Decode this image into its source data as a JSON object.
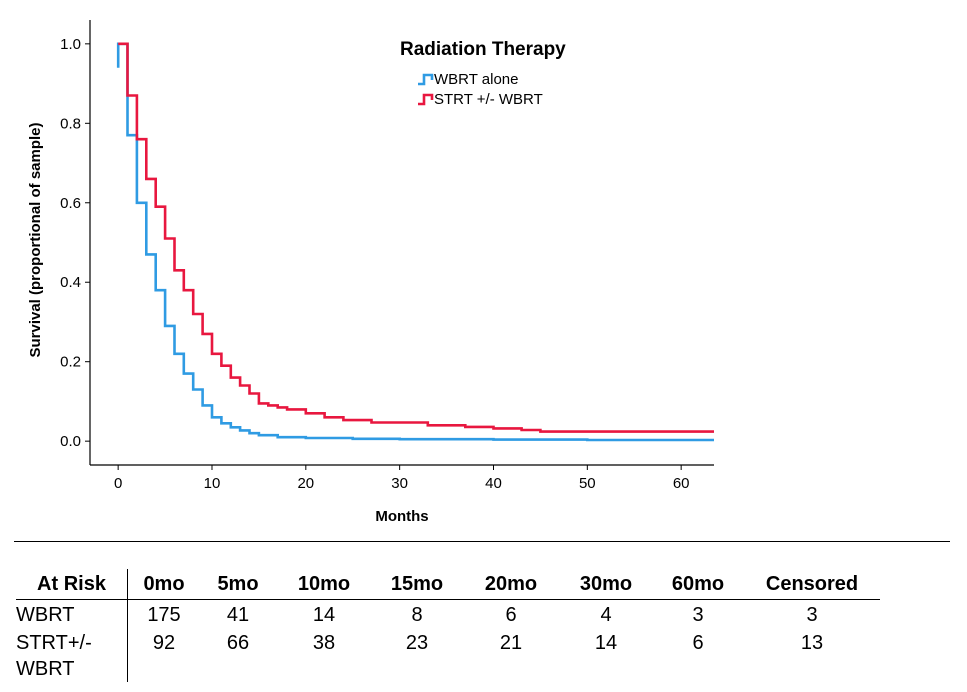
{
  "chart_data": {
    "type": "line",
    "title": "",
    "xlabel": "Months",
    "ylabel": "Survival (proportional of sample)",
    "xlim": [
      -3,
      63.5
    ],
    "ylim": [
      -0.06,
      1.06
    ],
    "xticks": [
      0,
      10,
      20,
      30,
      40,
      50,
      60
    ],
    "xtick_labels": [
      "0",
      "10",
      "20",
      "30",
      "40",
      "50",
      "60"
    ],
    "yticks": [
      0.0,
      0.2,
      0.4,
      0.6,
      0.8,
      1.0
    ],
    "ytick_labels": [
      "0.0",
      "0.2",
      "0.4",
      "0.6",
      "0.8",
      "1.0"
    ],
    "grid": false,
    "legend": {
      "title": "Radiation Therapy",
      "position": "top-right"
    },
    "series": [
      {
        "name": "WBRT alone",
        "color": "#2f9be3",
        "step": true,
        "x": [
          0,
          0,
          1,
          2,
          3,
          4,
          5,
          6,
          7,
          8,
          9,
          10,
          11,
          12,
          13,
          14,
          15,
          17,
          20,
          25,
          30,
          40,
          50,
          63.5
        ],
        "y": [
          0.94,
          1.0,
          0.77,
          0.6,
          0.47,
          0.38,
          0.29,
          0.22,
          0.17,
          0.13,
          0.09,
          0.06,
          0.045,
          0.035,
          0.027,
          0.02,
          0.015,
          0.01,
          0.008,
          0.006,
          0.005,
          0.004,
          0.003,
          0.003
        ]
      },
      {
        "name": "STRT +/- WBRT",
        "color": "#e8173f",
        "step": true,
        "x": [
          0,
          1,
          2,
          3,
          4,
          5,
          6,
          7,
          8,
          9,
          10,
          11,
          12,
          13,
          14,
          15,
          16,
          17,
          18,
          20,
          22,
          24,
          27,
          33,
          37,
          40,
          43,
          45,
          63.5
        ],
        "y": [
          1.0,
          0.87,
          0.76,
          0.66,
          0.59,
          0.51,
          0.43,
          0.38,
          0.32,
          0.27,
          0.22,
          0.19,
          0.16,
          0.14,
          0.12,
          0.095,
          0.09,
          0.085,
          0.08,
          0.07,
          0.06,
          0.053,
          0.047,
          0.04,
          0.036,
          0.032,
          0.028,
          0.024,
          0.024
        ]
      }
    ]
  },
  "risk_table": {
    "header": [
      "At Risk",
      "0mo",
      "5mo",
      "10mo",
      "15mo",
      "20mo",
      "30mo",
      "60mo",
      "Censored"
    ],
    "rows": [
      {
        "label": "WBRT",
        "values": [
          "175",
          "41",
          "14",
          "8",
          "6",
          "4",
          "3",
          "3"
        ]
      },
      {
        "label": "STRT+/- WBRT",
        "values": [
          "92",
          "66",
          "38",
          "23",
          "21",
          "14",
          "6",
          "13"
        ]
      }
    ]
  }
}
